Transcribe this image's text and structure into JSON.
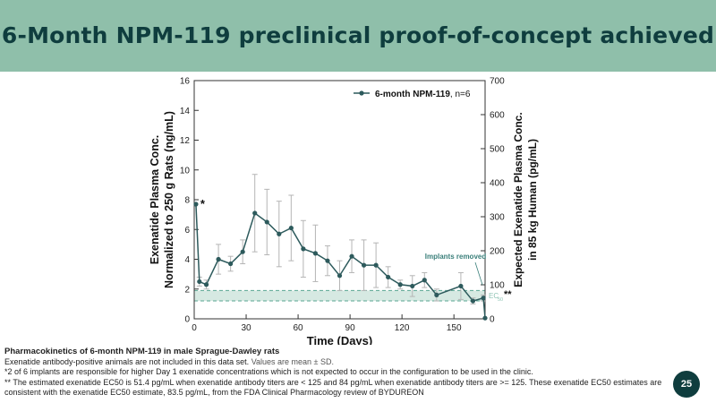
{
  "slide": {
    "title": "6-Month NPM-119 preclinical proof-of-concept achieved",
    "page_number": "25",
    "colors": {
      "banner": "#8fbfaa",
      "title": "#0f3d3e",
      "series": "#2d5a5c",
      "band": "#cfe5dd",
      "annotation": "#3a7f7a"
    }
  },
  "caption": {
    "title": "Pharmacokinetics of 6-month NPM-119 in male Sprague-Dawley rats",
    "line1_a": "Exenatide antibody-positive animals are not included in this data set.",
    "line1_b": "Values are mean ± SD.",
    "line2": "*2 of 6 implants are responsible for higher Day 1 exenatide concentrations which is not expected to occur in the configuration to be used in the clinic.",
    "line3": "** The estimated exenatide EC50 is 51.4 pg/mL when exenatide antibody titers are < 125 and 84 pg/mL when exenatide antibody titers are >= 125. These exenatide EC50 estimates are consistent with the exenatide EC50 estimate, 83.5 pg/mL, from the FDA Clinical Pharmacology review of BYDUREON"
  },
  "chart_data": {
    "type": "line",
    "xlabel": "Time (Days)",
    "ylabel_line1": "Exenatide Plasma Conc.",
    "ylabel_line2": "Normalized to 250 g Rats (ng/mL)",
    "y2label_line1": "Expected Exenatide Plasma Conc.",
    "y2label_line2": "in 85 kg Human (pg/mL)",
    "xlim": [
      0,
      168
    ],
    "ylim": [
      0,
      16
    ],
    "y2lim": [
      0,
      700
    ],
    "xticks": [
      "0",
      "30",
      "60",
      "90",
      "120",
      "150"
    ],
    "yticks": [
      "0",
      "2",
      "4",
      "6",
      "8",
      "10",
      "12",
      "14",
      "16"
    ],
    "y2ticks": [
      "0",
      "100",
      "200",
      "300",
      "400",
      "500",
      "600",
      "700"
    ],
    "grid": false,
    "legend_placement": "top-right",
    "series": [
      {
        "name": "6-month NPM-119",
        "legend_suffix": ", n=6",
        "x": [
          1,
          3,
          7,
          14,
          21,
          28,
          35,
          42,
          49,
          56,
          63,
          70,
          77,
          84,
          91,
          98,
          105,
          112,
          119,
          126,
          133,
          140,
          154,
          161,
          167,
          168
        ],
        "y": [
          7.7,
          2.5,
          2.3,
          4.0,
          3.7,
          4.5,
          7.1,
          6.5,
          5.7,
          6.1,
          4.7,
          4.4,
          3.9,
          2.9,
          4.2,
          3.6,
          3.6,
          2.8,
          2.3,
          2.2,
          2.6,
          1.6,
          2.2,
          1.2,
          1.4,
          0.05
        ],
        "sd": [
          0,
          0.3,
          0.3,
          1.0,
          0.5,
          0.8,
          2.6,
          2.2,
          2.2,
          2.2,
          1.9,
          1.9,
          1.0,
          1.0,
          1.1,
          1.7,
          1.5,
          0.7,
          0.3,
          0.7,
          0.5,
          0.4,
          0.9,
          0.2,
          0.2,
          0
        ]
      }
    ],
    "ec50_band": [
      1.2,
      1.9
    ],
    "annotations": {
      "day1_marker": "*",
      "implants_removed": "Implants removed",
      "ec50_label": "EC",
      "ec50_subscript": "50",
      "ec50_marker": "**"
    }
  }
}
